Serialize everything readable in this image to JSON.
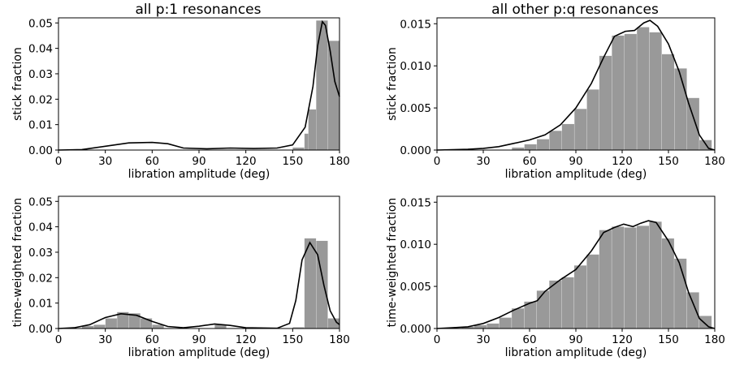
{
  "figure_titles": [
    "all p:1 resonances",
    "all other p:q resonances"
  ],
  "chart_data": [
    {
      "type": "bar",
      "title": "all p:1 resonances",
      "xlabel": "libration amplitude (deg)",
      "ylabel": "stick fraction",
      "xlim": [
        0,
        180
      ],
      "ylim": [
        0,
        0.052
      ],
      "xticks": [
        "0",
        "30",
        "60",
        "90",
        "120",
        "150",
        "180"
      ],
      "yticks": [
        "0.00",
        "0.01",
        "0.02",
        "0.03",
        "0.04",
        "0.05"
      ],
      "bin_width": 7.5,
      "bins": [
        [
          150,
          0.001
        ],
        [
          157.5,
          0.0065
        ],
        [
          160,
          0.016
        ],
        [
          165,
          0.051
        ],
        [
          172.5,
          0.043
        ]
      ],
      "kde": [
        [
          0,
          0
        ],
        [
          15,
          0.0002
        ],
        [
          30,
          0.0015
        ],
        [
          45,
          0.0028
        ],
        [
          60,
          0.003
        ],
        [
          70,
          0.0025
        ],
        [
          80,
          0.0008
        ],
        [
          95,
          0.0005
        ],
        [
          110,
          0.0008
        ],
        [
          125,
          0.0006
        ],
        [
          140,
          0.0008
        ],
        [
          150,
          0.002
        ],
        [
          158,
          0.009
        ],
        [
          163,
          0.025
        ],
        [
          166,
          0.041
        ],
        [
          169,
          0.0505
        ],
        [
          171,
          0.049
        ],
        [
          174,
          0.039
        ],
        [
          177,
          0.027
        ],
        [
          180,
          0.021
        ]
      ]
    },
    {
      "type": "bar",
      "title": "all other p:q resonances",
      "xlabel": "libration amplitude (deg)",
      "ylabel": "stick fraction",
      "xlim": [
        0,
        180
      ],
      "ylim": [
        0,
        0.0157
      ],
      "xticks": [
        "0",
        "30",
        "60",
        "90",
        "120",
        "150",
        "180"
      ],
      "yticks": [
        "0.000",
        "0.005",
        "0.010",
        "0.015"
      ],
      "bin_width": 8.1,
      "bins": [
        [
          48.5,
          0.0003
        ],
        [
          56.6,
          0.0007
        ],
        [
          64.7,
          0.0013
        ],
        [
          72.8,
          0.0023
        ],
        [
          80.9,
          0.0031
        ],
        [
          89,
          0.0049
        ],
        [
          97.1,
          0.0072
        ],
        [
          105.2,
          0.0112
        ],
        [
          113.3,
          0.0136
        ],
        [
          121.4,
          0.0138
        ],
        [
          129.5,
          0.0146
        ],
        [
          137.6,
          0.014
        ],
        [
          145.7,
          0.0114
        ],
        [
          153.8,
          0.0097
        ],
        [
          161.9,
          0.0062
        ],
        [
          170,
          0.0012
        ]
      ],
      "kde": [
        [
          0,
          0
        ],
        [
          20,
          0.0001
        ],
        [
          30,
          0.0002
        ],
        [
          40,
          0.0004
        ],
        [
          50,
          0.0008
        ],
        [
          60,
          0.0012
        ],
        [
          70,
          0.0018
        ],
        [
          80,
          0.003
        ],
        [
          90,
          0.005
        ],
        [
          100,
          0.0079
        ],
        [
          108,
          0.011
        ],
        [
          115,
          0.0135
        ],
        [
          122,
          0.0141
        ],
        [
          128,
          0.0142
        ],
        [
          134,
          0.0151
        ],
        [
          138,
          0.0154
        ],
        [
          143,
          0.0147
        ],
        [
          150,
          0.0126
        ],
        [
          157,
          0.0093
        ],
        [
          163,
          0.0056
        ],
        [
          170,
          0.0018
        ],
        [
          176,
          0.0002
        ],
        [
          180,
          0
        ]
      ]
    },
    {
      "type": "bar",
      "title": "",
      "xlabel": "libration amplitude (deg)",
      "ylabel": "time-weighted fraction",
      "xlim": [
        0,
        180
      ],
      "ylim": [
        0,
        0.052
      ],
      "xticks": [
        "0",
        "30",
        "60",
        "90",
        "120",
        "150",
        "180"
      ],
      "yticks": [
        "0.00",
        "0.01",
        "0.02",
        "0.03",
        "0.04",
        "0.05"
      ],
      "bin_width": 7.5,
      "bins": [
        [
          15,
          0.001
        ],
        [
          22.5,
          0.0015
        ],
        [
          30,
          0.004
        ],
        [
          37.5,
          0.0065
        ],
        [
          45,
          0.006
        ],
        [
          52.5,
          0.004
        ],
        [
          60,
          0.0015
        ],
        [
          100,
          0.0015
        ],
        [
          150,
          0.0005
        ],
        [
          157.5,
          0.0355
        ],
        [
          165,
          0.0345
        ],
        [
          172.5,
          0.004
        ]
      ],
      "kde": [
        [
          0,
          0
        ],
        [
          10,
          0.0003
        ],
        [
          20,
          0.0015
        ],
        [
          30,
          0.0043
        ],
        [
          40,
          0.0058
        ],
        [
          50,
          0.0052
        ],
        [
          60,
          0.0028
        ],
        [
          70,
          0.0008
        ],
        [
          80,
          0.0003
        ],
        [
          90,
          0.0009
        ],
        [
          100,
          0.0018
        ],
        [
          110,
          0.0012
        ],
        [
          120,
          0.0003
        ],
        [
          140,
          0.0001
        ],
        [
          148,
          0.002
        ],
        [
          152,
          0.011
        ],
        [
          156,
          0.027
        ],
        [
          161,
          0.0338
        ],
        [
          166,
          0.029
        ],
        [
          170,
          0.017
        ],
        [
          174,
          0.007
        ],
        [
          178,
          0.0025
        ],
        [
          180,
          0.0015
        ]
      ]
    },
    {
      "type": "bar",
      "title": "",
      "xlabel": "libration amplitude (deg)",
      "ylabel": "time-weighted fraction",
      "xlim": [
        0,
        180
      ],
      "ylim": [
        0,
        0.0157
      ],
      "xticks": [
        "0",
        "30",
        "60",
        "90",
        "120",
        "150",
        "180"
      ],
      "yticks": [
        "0.000",
        "0.005",
        "0.010",
        "0.015"
      ],
      "bin_width": 8.1,
      "bins": [
        [
          16,
          0.0002
        ],
        [
          24.1,
          0.0004
        ],
        [
          32.2,
          0.0006
        ],
        [
          40.3,
          0.0013
        ],
        [
          48.4,
          0.0024
        ],
        [
          56.5,
          0.0032
        ],
        [
          64.6,
          0.0045
        ],
        [
          72.7,
          0.0057
        ],
        [
          80.8,
          0.0061
        ],
        [
          88.9,
          0.0075
        ],
        [
          97,
          0.0088
        ],
        [
          105.1,
          0.0117
        ],
        [
          113.2,
          0.0121
        ],
        [
          121.3,
          0.012
        ],
        [
          129.4,
          0.0122
        ],
        [
          137.5,
          0.0127
        ],
        [
          145.6,
          0.0107
        ],
        [
          153.7,
          0.0083
        ],
        [
          161.8,
          0.0043
        ],
        [
          169.9,
          0.0015
        ]
      ],
      "kde": [
        [
          0,
          0
        ],
        [
          10,
          0.0001
        ],
        [
          20,
          0.0002
        ],
        [
          30,
          0.0006
        ],
        [
          40,
          0.0013
        ],
        [
          50,
          0.0022
        ],
        [
          60,
          0.003
        ],
        [
          65,
          0.0033
        ],
        [
          70,
          0.0044
        ],
        [
          80,
          0.0058
        ],
        [
          90,
          0.007
        ],
        [
          100,
          0.0092
        ],
        [
          108,
          0.0114
        ],
        [
          115,
          0.012
        ],
        [
          121,
          0.0124
        ],
        [
          127,
          0.0121
        ],
        [
          132,
          0.0125
        ],
        [
          137,
          0.0128
        ],
        [
          142,
          0.0126
        ],
        [
          150,
          0.0104
        ],
        [
          157,
          0.0078
        ],
        [
          163,
          0.0043
        ],
        [
          170,
          0.0012
        ],
        [
          176,
          0.0002
        ],
        [
          180,
          0
        ]
      ]
    }
  ]
}
